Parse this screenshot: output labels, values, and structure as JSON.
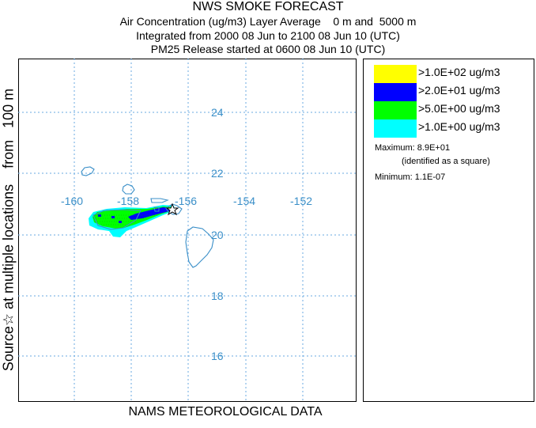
{
  "title": "NWS SMOKE FORECAST",
  "subtitle_lines": [
    "Air Concentration (ug/m3) Layer Average    0 m and  5000 m",
    "Integrated from 2000 08 Jun to 2100 08 Jun 10 (UTC)",
    "PM25 Release started at 0600 08 Jun 10 (UTC)"
  ],
  "y_axis_label": "Source☆ at multiple locations    from   100 m",
  "x_axis_label": "NAMS METEOROLOGICAL DATA",
  "map": {
    "longitude_labels": [
      "-160",
      "-158",
      "-156",
      "-154",
      "-152"
    ],
    "latitude_labels": [
      "24",
      "22",
      "20",
      "18",
      "16"
    ],
    "gridline_color": "#6aaae0",
    "label_color": "#3a8fc8",
    "coastline_color": "#3a8fc8",
    "source_marker_icon": "star-outline-icon"
  },
  "legend": {
    "items": [
      {
        "label": ">1.0E+02 ug/m3",
        "color": "#ffff00"
      },
      {
        "label": ">2.0E+01 ug/m3",
        "color": "#0000ff"
      },
      {
        "label": ">5.0E+00 ug/m3",
        "color": "#00ff00"
      },
      {
        "label": ">1.0E+00 ug/m3",
        "color": "#00ffff"
      }
    ],
    "maximum_label": "Maximum: 8.9E+01",
    "maximum_note": "(identified as a square)",
    "minimum_label": "Minimum: 1.1E-07"
  }
}
